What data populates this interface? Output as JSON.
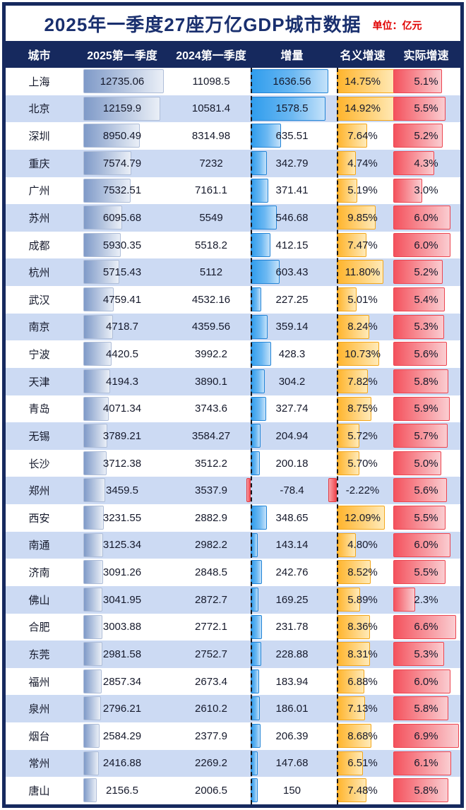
{
  "title": "2025年一季度27座万亿GDP城市数据",
  "unit_label": "单位：亿元",
  "chart_data": {
    "type": "table",
    "title": "2025年一季度27座万亿GDP城市数据",
    "unit": "亿元",
    "columns": [
      "城市",
      "2025第一季度",
      "2024第一季度",
      "增量",
      "名义增速",
      "实际增速"
    ],
    "bar_colors": {
      "q1_2025": "#7F9AC8",
      "delta_positive": "#2F9DED",
      "delta_negative": "#F0474F",
      "nominal_growth": "#FFB42C",
      "real_growth": "#F4525D",
      "header_bg": "#16295E",
      "alt_row_bg": "#CCDAF3",
      "unit_text": "#E00000"
    },
    "rows": [
      {
        "city": "上海",
        "q1_2025": 12735.06,
        "q1_2024": 11098.5,
        "delta": 1636.56,
        "nominal_pct": 14.75,
        "real_pct": 5.1
      },
      {
        "city": "北京",
        "q1_2025": 12159.9,
        "q1_2024": 10581.4,
        "delta": 1578.5,
        "nominal_pct": 14.92,
        "real_pct": 5.5
      },
      {
        "city": "深圳",
        "q1_2025": 8950.49,
        "q1_2024": 8314.98,
        "delta": 635.51,
        "nominal_pct": 7.64,
        "real_pct": 5.2
      },
      {
        "city": "重庆",
        "q1_2025": 7574.79,
        "q1_2024": 7232,
        "delta": 342.79,
        "nominal_pct": 4.74,
        "real_pct": 4.3
      },
      {
        "city": "广州",
        "q1_2025": 7532.51,
        "q1_2024": 7161.1,
        "delta": 371.41,
        "nominal_pct": 5.19,
        "real_pct": 3.0
      },
      {
        "city": "苏州",
        "q1_2025": 6095.68,
        "q1_2024": 5549,
        "delta": 546.68,
        "nominal_pct": 9.85,
        "real_pct": 6.0
      },
      {
        "city": "成都",
        "q1_2025": 5930.35,
        "q1_2024": 5518.2,
        "delta": 412.15,
        "nominal_pct": 7.47,
        "real_pct": 6.0
      },
      {
        "city": "杭州",
        "q1_2025": 5715.43,
        "q1_2024": 5112,
        "delta": 603.43,
        "nominal_pct": 11.8,
        "real_pct": 5.2
      },
      {
        "city": "武汉",
        "q1_2025": 4759.41,
        "q1_2024": 4532.16,
        "delta": 227.25,
        "nominal_pct": 5.01,
        "real_pct": 5.4
      },
      {
        "city": "南京",
        "q1_2025": 4718.7,
        "q1_2024": 4359.56,
        "delta": 359.14,
        "nominal_pct": 8.24,
        "real_pct": 5.3
      },
      {
        "city": "宁波",
        "q1_2025": 4420.5,
        "q1_2024": 3992.2,
        "delta": 428.3,
        "nominal_pct": 10.73,
        "real_pct": 5.6
      },
      {
        "city": "天津",
        "q1_2025": 4194.3,
        "q1_2024": 3890.1,
        "delta": 304.2,
        "nominal_pct": 7.82,
        "real_pct": 5.8
      },
      {
        "city": "青岛",
        "q1_2025": 4071.34,
        "q1_2024": 3743.6,
        "delta": 327.74,
        "nominal_pct": 8.75,
        "real_pct": 5.9
      },
      {
        "city": "无锡",
        "q1_2025": 3789.21,
        "q1_2024": 3584.27,
        "delta": 204.94,
        "nominal_pct": 5.72,
        "real_pct": 5.7
      },
      {
        "city": "长沙",
        "q1_2025": 3712.38,
        "q1_2024": 3512.2,
        "delta": 200.18,
        "nominal_pct": 5.7,
        "real_pct": 5.0
      },
      {
        "city": "郑州",
        "q1_2025": 3459.5,
        "q1_2024": 3537.9,
        "delta": -78.4,
        "nominal_pct": -2.22,
        "real_pct": 5.6
      },
      {
        "city": "西安",
        "q1_2025": 3231.55,
        "q1_2024": 2882.9,
        "delta": 348.65,
        "nominal_pct": 12.09,
        "real_pct": 5.5
      },
      {
        "city": "南通",
        "q1_2025": 3125.34,
        "q1_2024": 2982.2,
        "delta": 143.14,
        "nominal_pct": 4.8,
        "real_pct": 6.0
      },
      {
        "city": "济南",
        "q1_2025": 3091.26,
        "q1_2024": 2848.5,
        "delta": 242.76,
        "nominal_pct": 8.52,
        "real_pct": 5.5
      },
      {
        "city": "佛山",
        "q1_2025": 3041.95,
        "q1_2024": 2872.7,
        "delta": 169.25,
        "nominal_pct": 5.89,
        "real_pct": 2.3
      },
      {
        "city": "合肥",
        "q1_2025": 3003.88,
        "q1_2024": 2772.1,
        "delta": 231.78,
        "nominal_pct": 8.36,
        "real_pct": 6.6
      },
      {
        "city": "东莞",
        "q1_2025": 2981.58,
        "q1_2024": 2752.7,
        "delta": 228.88,
        "nominal_pct": 8.31,
        "real_pct": 5.3
      },
      {
        "city": "福州",
        "q1_2025": 2857.34,
        "q1_2024": 2673.4,
        "delta": 183.94,
        "nominal_pct": 6.88,
        "real_pct": 6.0
      },
      {
        "city": "泉州",
        "q1_2025": 2796.21,
        "q1_2024": 2610.2,
        "delta": 186.01,
        "nominal_pct": 7.13,
        "real_pct": 5.8
      },
      {
        "city": "烟台",
        "q1_2025": 2584.29,
        "q1_2024": 2377.9,
        "delta": 206.39,
        "nominal_pct": 8.68,
        "real_pct": 6.9
      },
      {
        "city": "常州",
        "q1_2025": 2416.88,
        "q1_2024": 2269.2,
        "delta": 147.68,
        "nominal_pct": 6.51,
        "real_pct": 6.1
      },
      {
        "city": "唐山",
        "q1_2025": 2156.5,
        "q1_2024": 2006.5,
        "delta": 150,
        "nominal_pct": 7.48,
        "real_pct": 5.8
      }
    ]
  }
}
